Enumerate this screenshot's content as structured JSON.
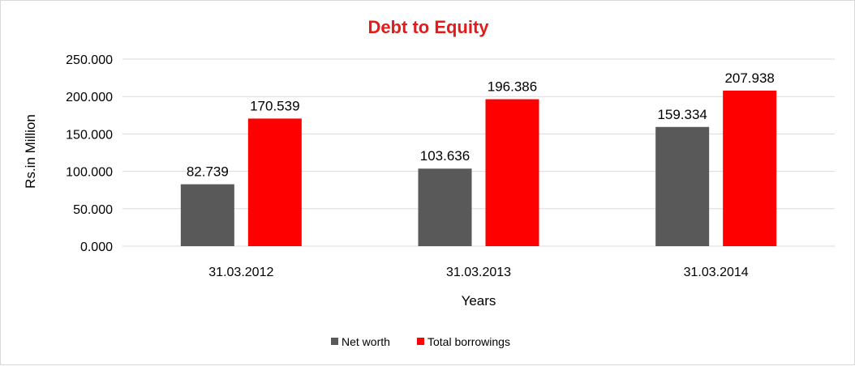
{
  "chart_data": {
    "type": "bar",
    "title": "Debt to Equity",
    "xlabel": "Years",
    "ylabel": "Rs.in Million",
    "categories": [
      "31.03.2012",
      "31.03.2013",
      "31.03.2014"
    ],
    "series": [
      {
        "name": "Net worth",
        "values": [
          82.739,
          103.636,
          159.334
        ],
        "labels": [
          "82.739",
          "103.636",
          "159.334"
        ],
        "color": "#595959"
      },
      {
        "name": "Total borrowings",
        "values": [
          170.539,
          196.386,
          207.938
        ],
        "labels": [
          "170.539",
          "196.386",
          "207.938"
        ],
        "color": "#ff0000"
      }
    ],
    "ylim": [
      0,
      250
    ],
    "yticks": [
      "0.000",
      "50.000",
      "100.000",
      "150.000",
      "200.000",
      "250.000"
    ],
    "grid": true,
    "legend": "bottom",
    "title_color": "#e31b1b",
    "gridline_color": "#d9d9d9"
  }
}
